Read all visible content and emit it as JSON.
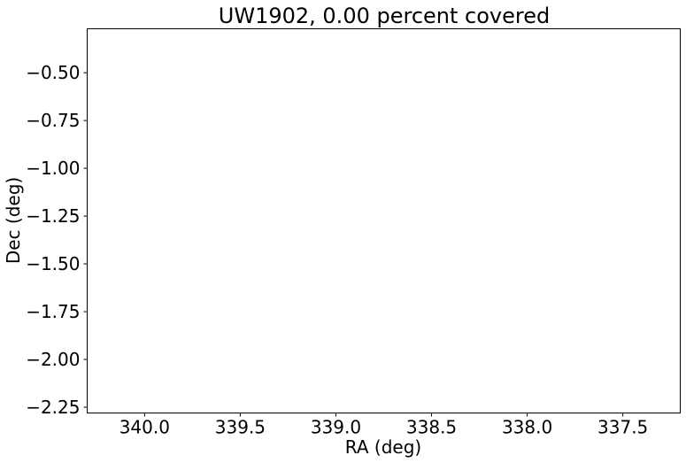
{
  "chart_data": {
    "type": "scatter",
    "title": "UW1902, 0.00 percent covered",
    "xlabel": "RA (deg)",
    "ylabel": "Dec (deg)",
    "xlim": [
      340.3,
      337.2
    ],
    "ylim": [
      -2.28,
      -0.27
    ],
    "x_inverted": true,
    "x_ticks": [
      340.0,
      339.5,
      339.0,
      338.5,
      338.0,
      337.5
    ],
    "x_tick_labels": [
      "340.0",
      "339.5",
      "339.0",
      "338.5",
      "338.0",
      "337.5"
    ],
    "y_ticks": [
      -0.5,
      -0.75,
      -1.0,
      -1.25,
      -1.5,
      -1.75,
      -2.0,
      -2.25
    ],
    "y_tick_labels": [
      "−0.50",
      "−0.75",
      "−1.00",
      "−1.25",
      "−1.50",
      "−1.75",
      "−2.00",
      "−2.25"
    ],
    "points": [],
    "grid": false,
    "legend": "none"
  }
}
